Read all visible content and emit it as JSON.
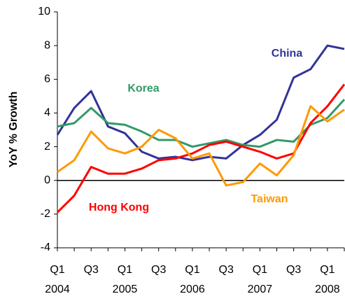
{
  "chart_data": {
    "type": "line",
    "y_label": "YoY % Growth",
    "categories": [
      "Q1",
      null,
      "Q3",
      null,
      "Q1",
      null,
      "Q3",
      null,
      "Q1",
      null,
      "Q3",
      null,
      "Q1",
      null,
      "Q3",
      null,
      "Q1",
      null
    ],
    "years": [
      "2004",
      null,
      null,
      null,
      "2005",
      null,
      null,
      null,
      "2006",
      null,
      null,
      null,
      "2007",
      null,
      null,
      null,
      "2008",
      null
    ],
    "series": [
      {
        "name": "China",
        "color": "#333399",
        "values": [
          2.7,
          4.3,
          5.3,
          3.2,
          2.8,
          1.7,
          1.3,
          1.4,
          1.2,
          1.4,
          1.3,
          2.1,
          2.7,
          3.6,
          6.1,
          6.6,
          8.0,
          7.8
        ]
      },
      {
        "name": "Korea",
        "color": "#339966",
        "values": [
          3.2,
          3.4,
          4.3,
          3.4,
          3.3,
          2.9,
          2.4,
          2.4,
          2.0,
          2.2,
          2.4,
          2.1,
          2.0,
          2.4,
          2.3,
          3.3,
          3.7,
          4.8
        ]
      },
      {
        "name": "Hong Kong",
        "color": "#ff0000",
        "values": [
          -1.9,
          -0.9,
          0.8,
          0.4,
          0.4,
          0.7,
          1.2,
          1.3,
          1.6,
          2.1,
          2.3,
          2.0,
          1.7,
          1.3,
          1.6,
          3.4,
          4.4,
          5.7
        ]
      },
      {
        "name": "Taiwan",
        "color": "#ff9900",
        "values": [
          0.5,
          1.2,
          2.9,
          1.9,
          1.6,
          2.0,
          3.0,
          2.5,
          1.3,
          1.6,
          -0.3,
          -0.1,
          1.0,
          0.3,
          1.5,
          4.4,
          3.5,
          4.2
        ]
      }
    ],
    "ylim": [
      -4,
      10
    ],
    "yticks": [
      -4,
      -2,
      0,
      2,
      4,
      6,
      8,
      10
    ]
  }
}
